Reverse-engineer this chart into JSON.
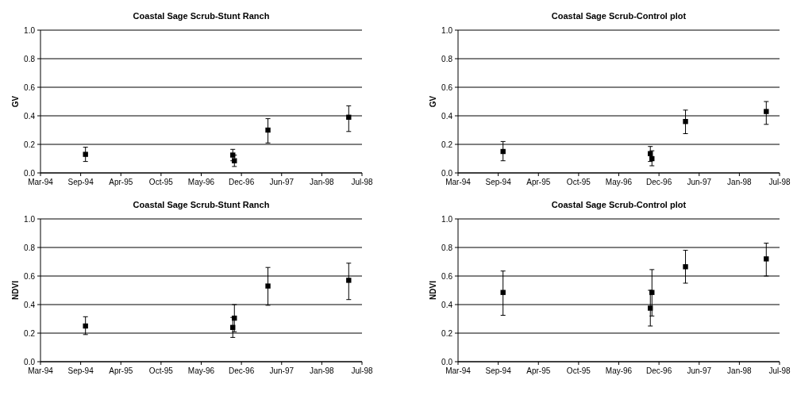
{
  "chart_data": [
    {
      "type": "scatter",
      "title": "Coastal Sage Scrub-Stunt Ranch",
      "ylabel": "GV",
      "marker": "square",
      "grid": "y",
      "series": [
        {
          "color": "#000000",
          "x": [
            "1994-10-20",
            "1996-10-22",
            "1996-10-30",
            "1997-04-15",
            "1998-05-22"
          ],
          "values": [
            0.13,
            0.125,
            0.085,
            0.3,
            0.39
          ],
          "errors": [
            [
              0.08,
              0.18
            ],
            [
              0.085,
              0.165
            ],
            [
              0.045,
              0.125
            ],
            [
              0.21,
              0.38
            ],
            [
              0.29,
              0.47
            ]
          ]
        }
      ],
      "xlim": [
        "1994-03-10",
        "1998-07-27"
      ],
      "xticks": [
        {
          "value": "1994-03-10",
          "label": "Mar-94"
        },
        {
          "value": "1994-09-26",
          "label": "Sep-94"
        },
        {
          "value": "1995-04-14",
          "label": "Apr-95"
        },
        {
          "value": "1995-10-31",
          "label": "Oct-95"
        },
        {
          "value": "1996-05-18",
          "label": "May-96"
        },
        {
          "value": "1996-12-04",
          "label": "Dec-96"
        },
        {
          "value": "1997-06-22",
          "label": "Jun-97"
        },
        {
          "value": "1998-01-08",
          "label": "Jan-98"
        },
        {
          "value": "1998-07-27",
          "label": "Jul-98"
        }
      ],
      "ylim": [
        0,
        1
      ],
      "yticks": [
        {
          "value": 0,
          "label": "0.0"
        },
        {
          "value": 0.2,
          "label": "0.2"
        },
        {
          "value": 0.4,
          "label": "0.4"
        },
        {
          "value": 0.6,
          "label": "0.6"
        },
        {
          "value": 0.8,
          "label": "0.8"
        },
        {
          "value": 1,
          "label": "1.0"
        }
      ]
    },
    {
      "type": "scatter",
      "title": "Coastal Sage Scrub-Control plot",
      "ylabel": "GV",
      "marker": "square",
      "grid": "y",
      "series": [
        {
          "color": "#000000",
          "x": [
            "1994-10-20",
            "1996-10-22",
            "1996-10-30",
            "1997-04-15",
            "1998-05-22"
          ],
          "values": [
            0.15,
            0.135,
            0.1,
            0.36,
            0.43
          ],
          "errors": [
            [
              0.085,
              0.22
            ],
            [
              0.08,
              0.185
            ],
            [
              0.05,
              0.155
            ],
            [
              0.275,
              0.44
            ],
            [
              0.34,
              0.5
            ]
          ]
        }
      ],
      "xlim": [
        "1994-03-10",
        "1998-07-27"
      ],
      "xticks": [
        {
          "value": "1994-03-10",
          "label": "Mar-94"
        },
        {
          "value": "1994-09-26",
          "label": "Sep-94"
        },
        {
          "value": "1995-04-14",
          "label": "Apr-95"
        },
        {
          "value": "1995-10-31",
          "label": "Oct-95"
        },
        {
          "value": "1996-05-18",
          "label": "May-96"
        },
        {
          "value": "1996-12-04",
          "label": "Dec-96"
        },
        {
          "value": "1997-06-22",
          "label": "Jun-97"
        },
        {
          "value": "1998-01-08",
          "label": "Jan-98"
        },
        {
          "value": "1998-07-27",
          "label": "Jul-98"
        }
      ],
      "ylim": [
        0,
        1
      ],
      "yticks": [
        {
          "value": 0,
          "label": "0.0"
        },
        {
          "value": 0.2,
          "label": "0.2"
        },
        {
          "value": 0.4,
          "label": "0.4"
        },
        {
          "value": 0.6,
          "label": "0.6"
        },
        {
          "value": 0.8,
          "label": "0.8"
        },
        {
          "value": 1,
          "label": "1.0"
        }
      ]
    },
    {
      "type": "scatter",
      "title": "Coastal Sage Scrub-Stunt Ranch",
      "ylabel": "NDVI",
      "marker": "square",
      "grid": "y",
      "series": [
        {
          "color": "#000000",
          "x": [
            "1994-10-20",
            "1996-10-22",
            "1996-10-30",
            "1997-04-15",
            "1998-05-22"
          ],
          "values": [
            0.25,
            0.24,
            0.305,
            0.53,
            0.57
          ],
          "errors": [
            [
              0.19,
              0.315
            ],
            [
              0.17,
              0.31
            ],
            [
              0.21,
              0.4
            ],
            [
              0.395,
              0.66
            ],
            [
              0.435,
              0.69
            ]
          ]
        }
      ],
      "xlim": [
        "1994-03-10",
        "1998-07-27"
      ],
      "xticks": [
        {
          "value": "1994-03-10",
          "label": "Mar-94"
        },
        {
          "value": "1994-09-26",
          "label": "Sep-94"
        },
        {
          "value": "1995-04-14",
          "label": "Apr-95"
        },
        {
          "value": "1995-10-31",
          "label": "Oct-95"
        },
        {
          "value": "1996-05-18",
          "label": "May-96"
        },
        {
          "value": "1996-12-04",
          "label": "Dec-96"
        },
        {
          "value": "1997-06-22",
          "label": "Jun-97"
        },
        {
          "value": "1998-01-08",
          "label": "Jan-98"
        },
        {
          "value": "1998-07-27",
          "label": "Jul-98"
        }
      ],
      "ylim": [
        0,
        1
      ],
      "yticks": [
        {
          "value": 0,
          "label": "0.0"
        },
        {
          "value": 0.2,
          "label": "0.2"
        },
        {
          "value": 0.4,
          "label": "0.4"
        },
        {
          "value": 0.6,
          "label": "0.6"
        },
        {
          "value": 0.8,
          "label": "0.8"
        },
        {
          "value": 1,
          "label": "1.0"
        }
      ]
    },
    {
      "type": "scatter",
      "title": "Coastal Sage Scrub-Control plot",
      "ylabel": "NDVI",
      "marker": "square",
      "grid": "y",
      "series": [
        {
          "color": "#000000",
          "x": [
            "1994-10-20",
            "1996-10-22",
            "1996-10-30",
            "1997-04-15",
            "1998-05-22"
          ],
          "values": [
            0.485,
            0.375,
            0.485,
            0.665,
            0.72
          ],
          "errors": [
            [
              0.325,
              0.635
            ],
            [
              0.25,
              0.5
            ],
            [
              0.32,
              0.645
            ],
            [
              0.55,
              0.78
            ],
            [
              0.6,
              0.83
            ]
          ]
        }
      ],
      "xlim": [
        "1994-03-10",
        "1998-07-27"
      ],
      "xticks": [
        {
          "value": "1994-03-10",
          "label": "Mar-94"
        },
        {
          "value": "1994-09-26",
          "label": "Sep-94"
        },
        {
          "value": "1995-04-14",
          "label": "Apr-95"
        },
        {
          "value": "1995-10-31",
          "label": "Oct-95"
        },
        {
          "value": "1996-05-18",
          "label": "May-96"
        },
        {
          "value": "1996-12-04",
          "label": "Dec-96"
        },
        {
          "value": "1997-06-22",
          "label": "Jun-97"
        },
        {
          "value": "1998-01-08",
          "label": "Jan-98"
        },
        {
          "value": "1998-07-27",
          "label": "Jul-98"
        }
      ],
      "ylim": [
        0,
        1
      ],
      "yticks": [
        {
          "value": 0,
          "label": "0.0"
        },
        {
          "value": 0.2,
          "label": "0.2"
        },
        {
          "value": 0.4,
          "label": "0.4"
        },
        {
          "value": 0.6,
          "label": "0.6"
        },
        {
          "value": 0.8,
          "label": "0.8"
        },
        {
          "value": 1,
          "label": "1.0"
        }
      ]
    }
  ]
}
